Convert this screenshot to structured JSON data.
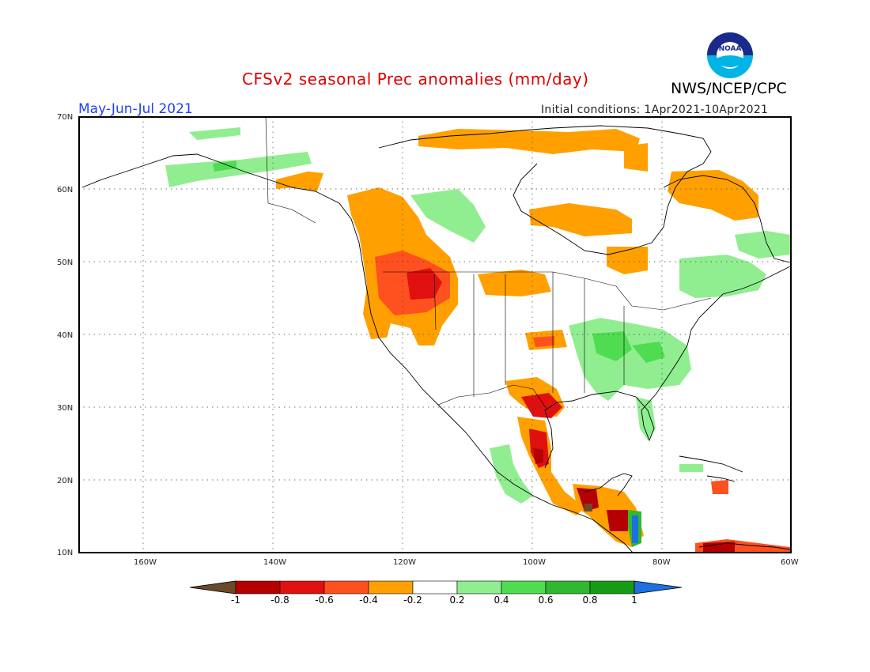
{
  "header": {
    "title": "CFSv2 seasonal Prec anomalies (mm/day)",
    "period": "May-Jun-Jul 2021",
    "initial_conditions": "Initial conditions: 1Apr2021-10Apr2021",
    "agency": "NWS/NCEP/CPC",
    "logo_text": "NOAA"
  },
  "axes": {
    "lat_labels": [
      "70N",
      "60N",
      "50N",
      "40N",
      "30N",
      "20N",
      "10N"
    ],
    "lon_labels": [
      "160W",
      "140W",
      "120W",
      "100W",
      "80W",
      "60W"
    ]
  },
  "legend": {
    "ticks": [
      "-1",
      "-0.8",
      "-0.6",
      "-0.4",
      "-0.2",
      "0.2",
      "0.4",
      "0.6",
      "0.8",
      "1"
    ],
    "colors": {
      "below_-1": "#6b4a2a",
      "-1_to_-0.8": "#b40000",
      "-0.8_to_-0.6": "#e01010",
      "-0.6_to_-0.4": "#ff5020",
      "-0.4_to_-0.2": "#ffa000",
      "-0.2_to_0.2": "#ffffff",
      "0.2_to_0.4": "#90ee90",
      "0.4_to_0.6": "#50dc50",
      "0.6_to_0.8": "#30b830",
      "0.8_to_1": "#169b16",
      "above_1": "#1e6fe0"
    }
  }
}
